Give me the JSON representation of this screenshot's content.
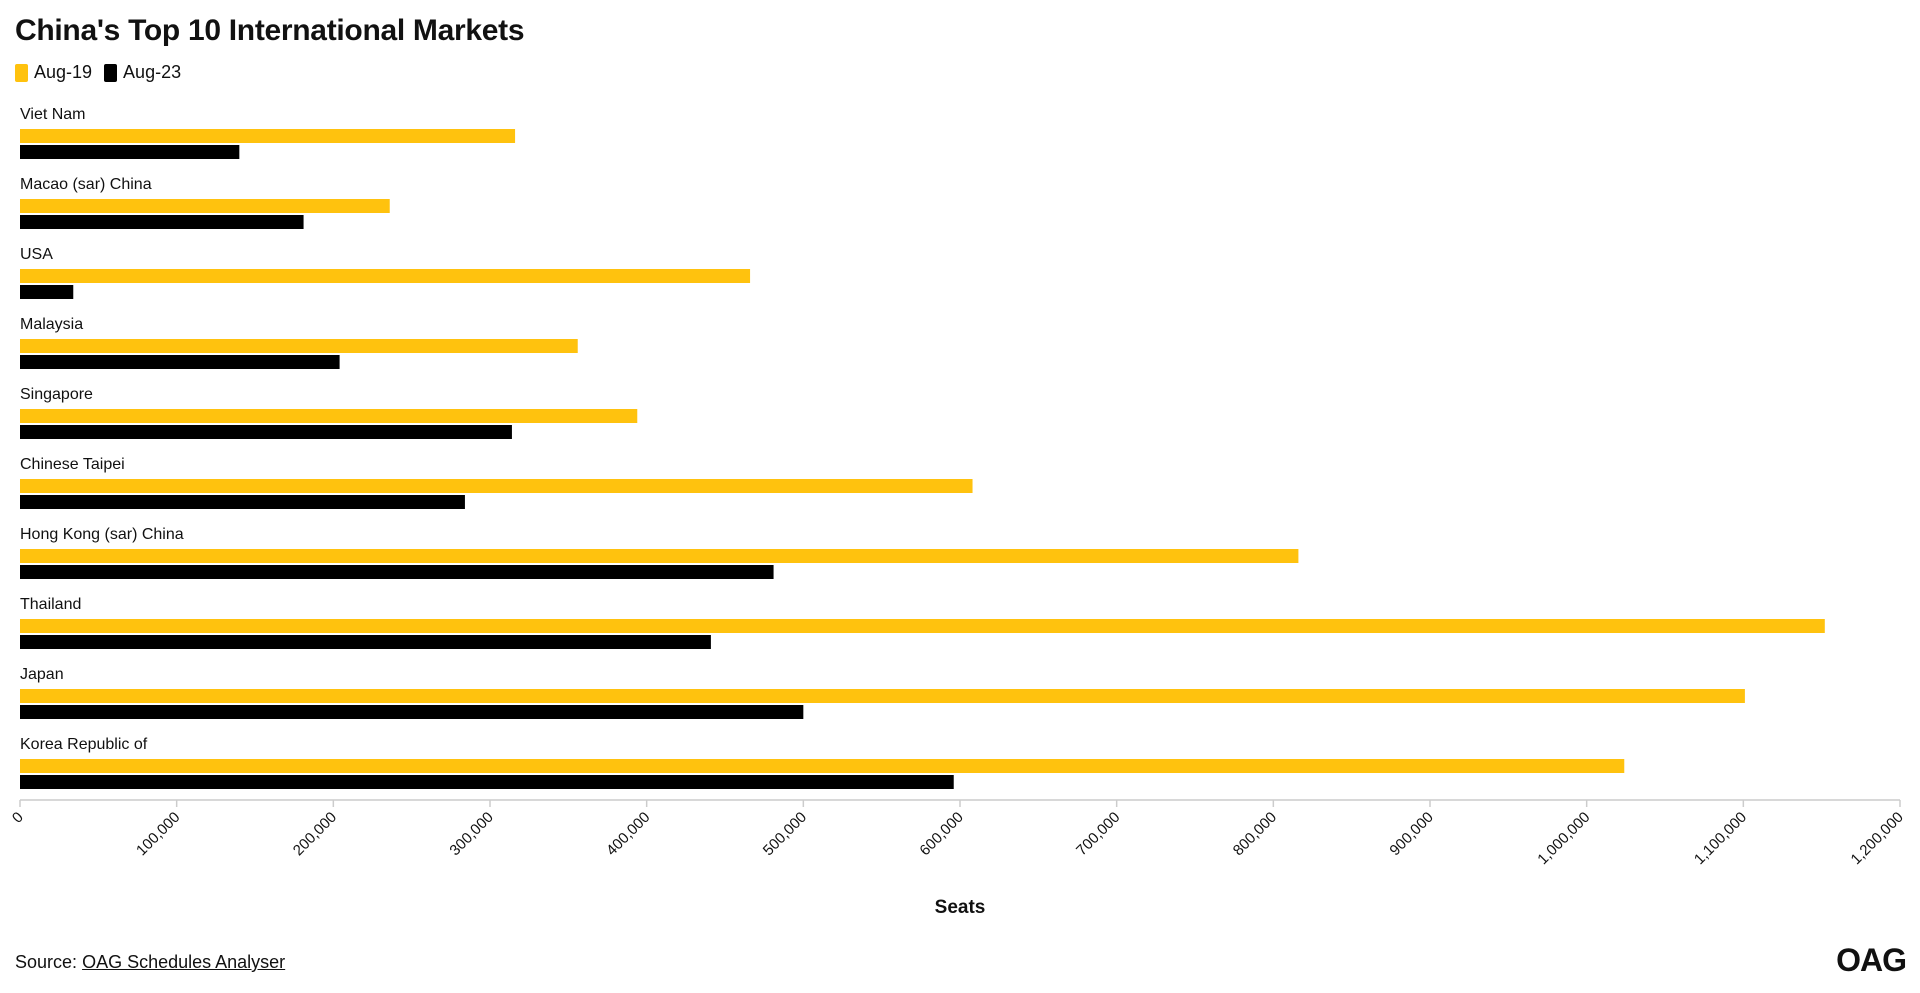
{
  "colors": {
    "aug19": "#FFC20E",
    "aug23": "#000000",
    "axis": "#cccccc"
  },
  "header": {
    "title": "China's Top 10 International Markets"
  },
  "legend": [
    {
      "label": "Aug-19",
      "color": "#FFC20E"
    },
    {
      "label": "Aug-23",
      "color": "#000000"
    }
  ],
  "footer": {
    "source_prefix": "Source:",
    "source_link": "OAG Schedules Analyser",
    "logo": "OAG"
  },
  "chart_data": {
    "type": "bar",
    "orientation": "horizontal",
    "title": "China's Top 10 International Markets",
    "xlabel": "Seats",
    "ylabel": "",
    "xlim": [
      0,
      1200000
    ],
    "xticks": [
      "0",
      "100,000",
      "200,000",
      "300,000",
      "400,000",
      "500,000",
      "600,000",
      "700,000",
      "800,000",
      "900,000",
      "1,000,000",
      "1,100,000",
      "1,200,000"
    ],
    "categories": [
      "Viet Nam",
      "Macao (sar) China",
      "USA",
      "Malaysia",
      "Singapore",
      "Chinese Taipei",
      "Hong Kong (sar) China",
      "Thailand",
      "Japan",
      "Korea Republic of"
    ],
    "series": [
      {
        "name": "Aug-19",
        "values": [
          316000,
          236000,
          466000,
          356000,
          394000,
          608000,
          816000,
          1152000,
          1101000,
          1024000
        ]
      },
      {
        "name": "Aug-23",
        "values": [
          140000,
          181000,
          34000,
          204000,
          314000,
          284000,
          481000,
          441000,
          500000,
          596000
        ]
      }
    ],
    "grid": false,
    "legend_position": "top-left"
  }
}
